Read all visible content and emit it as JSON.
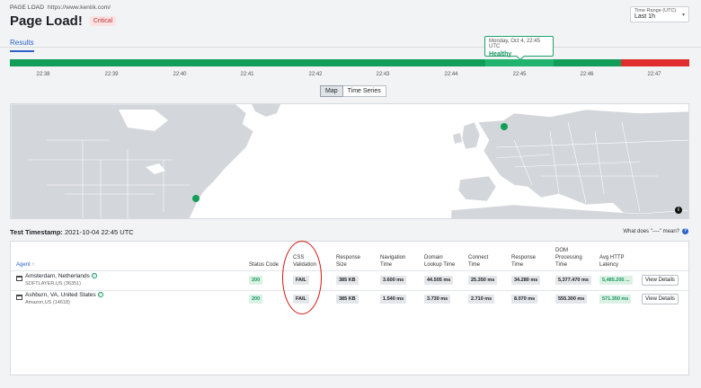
{
  "header": {
    "crumb": "PAGE LOAD",
    "url": "https://www.kentik.com/",
    "title": "Page Load!",
    "status_badge": "Critical",
    "time_range_label": "Time Range (UTC)",
    "time_range_value": "Last 1h"
  },
  "tabs": [
    "Results"
  ],
  "tooltip": {
    "date": "Monday, Oct 4, 22:45 UTC",
    "status": "Healthy"
  },
  "timeline": {
    "ticks": [
      "22:38",
      "22:39",
      "22:40",
      "22:41",
      "22:42",
      "22:43",
      "22:44",
      "22:45",
      "22:46",
      "22:47"
    ],
    "colors": {
      "healthy": "#129e58",
      "critical": "#e02e2e"
    }
  },
  "view_toggle": [
    "Map",
    "Time Series"
  ],
  "test_timestamp": {
    "label": "Test Timestamp:",
    "value": "2021-10-04 22:45 UTC"
  },
  "help_link": "What does \"----\" mean?",
  "table": {
    "columns": {
      "agent": "Agent",
      "status_code": "Status Code",
      "css_validation": [
        "CSS",
        "Validation"
      ],
      "response_size": [
        "Response",
        "Size"
      ],
      "navigation_time": [
        "Navigation",
        "Time"
      ],
      "domain_lookup": [
        "Domain",
        "Lookup Time"
      ],
      "connect_time": [
        "Connect",
        "Time"
      ],
      "response_time": [
        "Response",
        "Time"
      ],
      "dom_processing": [
        "DOM",
        "Processing",
        "Time"
      ],
      "avg_http_latency": [
        "Avg HTTP",
        "Latency"
      ]
    },
    "rows": [
      {
        "agent": "Amsterdam, Netherlands",
        "asn": "SOFTLAYER,US (36351)",
        "status_code": "200",
        "css_validation": "FAIL",
        "response_size": "385 KB",
        "navigation_time": "3.600 ms",
        "domain_lookup": "44.505 ms",
        "connect_time": "25.350 ms",
        "response_time": "34.280 ms",
        "dom_processing": "5,377.470 ms",
        "avg_http_latency": "5,485.205 ...",
        "action": "View Details"
      },
      {
        "agent": "Ashburn, VA, United States",
        "asn": "Amazon,US (14618)",
        "status_code": "200",
        "css_validation": "FAIL",
        "response_size": "385 KB",
        "navigation_time": "1.540 ms",
        "domain_lookup": "3.730 ms",
        "connect_time": "2.710 ms",
        "response_time": "8.070 ms",
        "dom_processing": "555.300 ms",
        "avg_http_latency": "571.350 ms",
        "action": "View Details"
      }
    ]
  }
}
